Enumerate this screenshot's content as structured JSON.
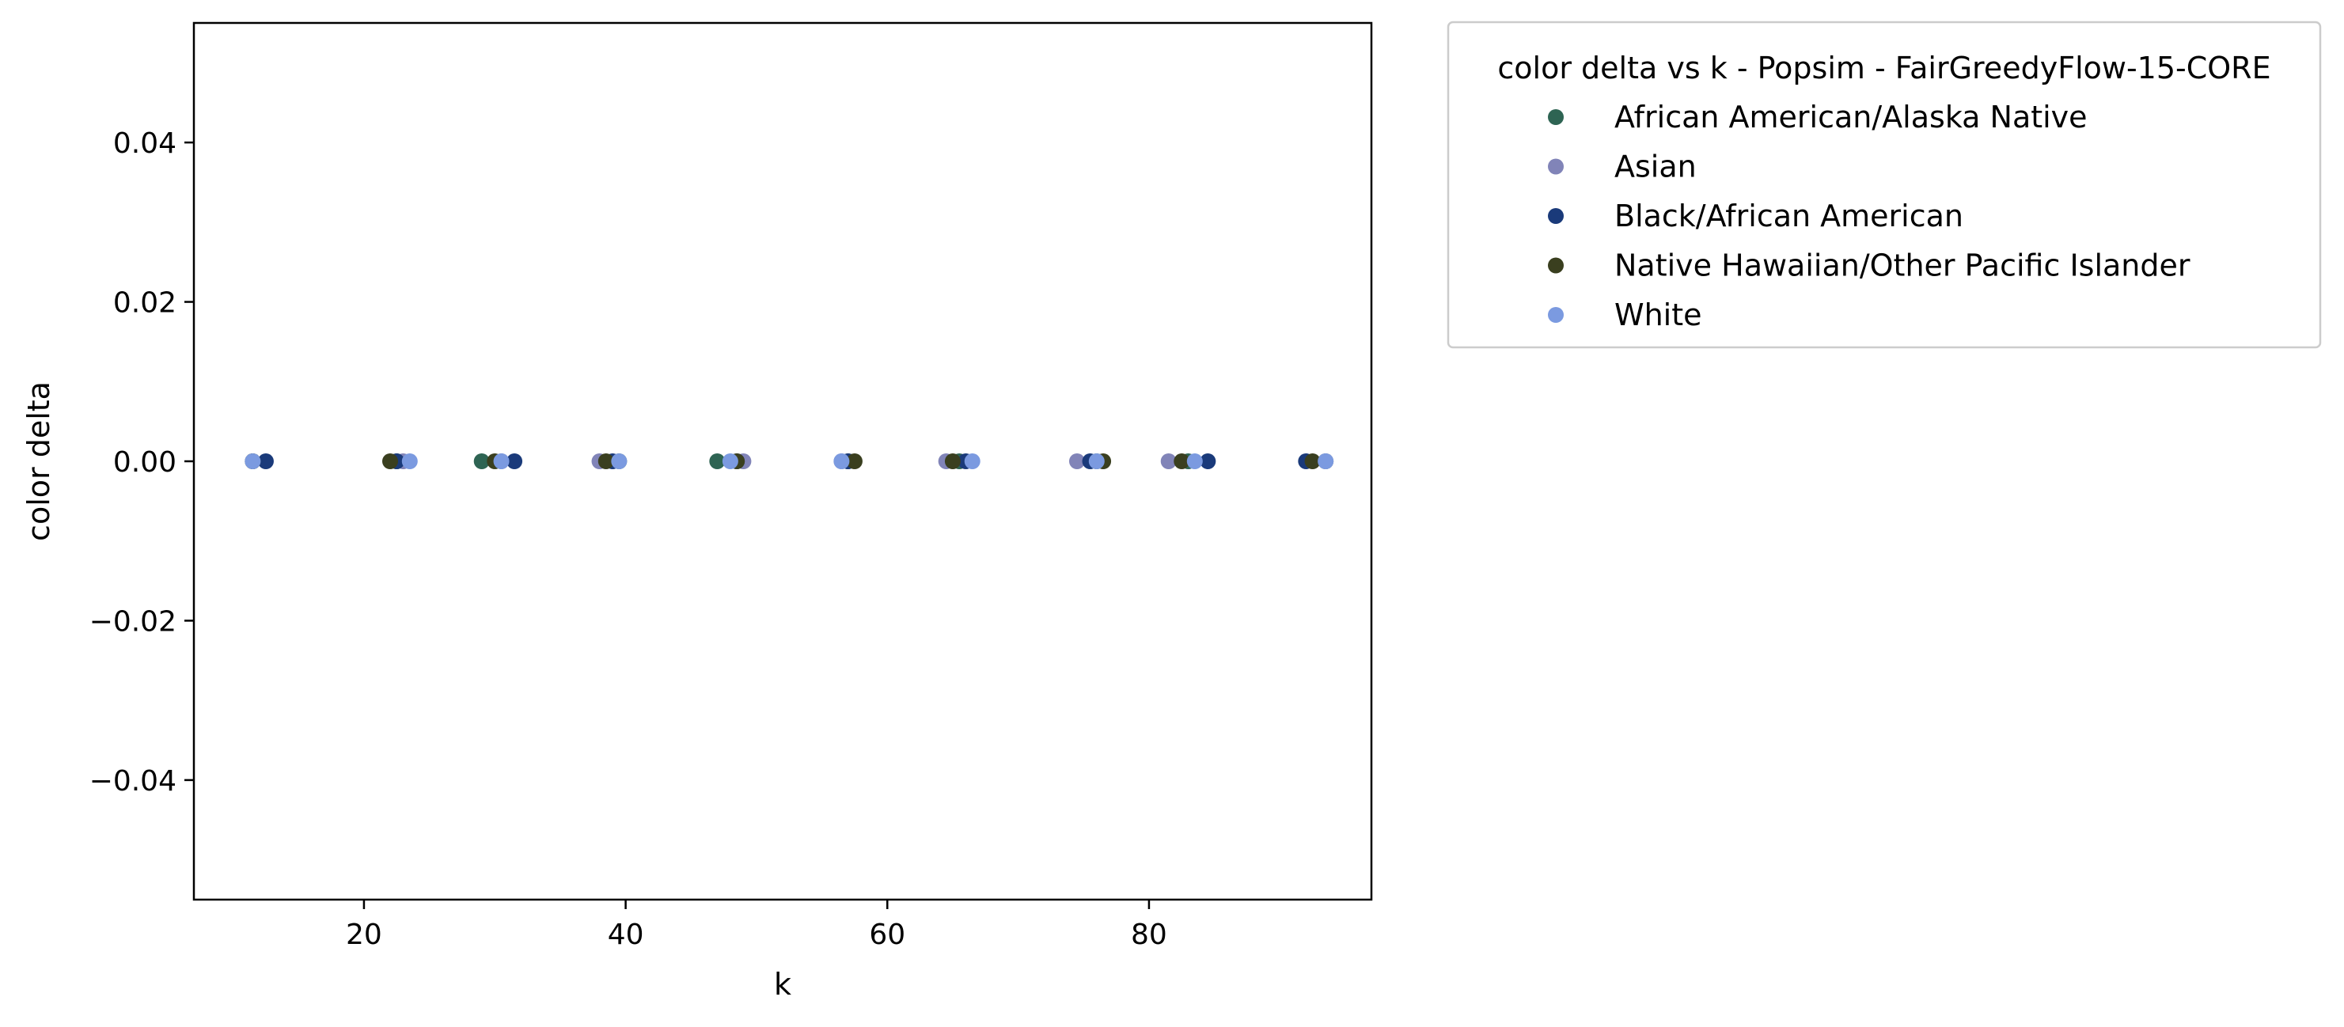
{
  "chart_data": {
    "type": "scatter",
    "xlabel": "k",
    "ylabel": "color delta",
    "xlim": [
      7,
      97
    ],
    "ylim": [
      -0.055,
      0.055
    ],
    "x_ticks": [
      20,
      40,
      60,
      80
    ],
    "x_tick_labels": [
      "20",
      "40",
      "60",
      "80"
    ],
    "y_ticks": [
      0.04,
      0.02,
      0.0,
      -0.02,
      -0.04
    ],
    "y_tick_labels": [
      "0.04",
      "0.02",
      "0.00",
      "−0.02",
      "−0.04"
    ],
    "grid": false,
    "legend": {
      "title": "color delta vs k - Popsim - FairGreedyFlow-15-CORE",
      "placement": "outside-upper-right"
    },
    "series": [
      {
        "name": "African American/Alaska Native",
        "color": "#2e6453",
        "x": [
          11.5,
          22.5,
          29,
          39.5,
          47,
          57,
          65.5,
          76,
          83,
          93.5
        ],
        "y": [
          0,
          0,
          0,
          0,
          0,
          0,
          0,
          0,
          0,
          0
        ]
      },
      {
        "name": "Asian",
        "color": "#8184b8",
        "x": [
          11.5,
          23,
          30.5,
          38,
          49,
          56.5,
          64.5,
          74.5,
          81.5,
          93.5
        ],
        "y": [
          0,
          0,
          0,
          0,
          0,
          0,
          0,
          0,
          0,
          0
        ]
      },
      {
        "name": "Black/African American",
        "color": "#1a3a7a",
        "x": [
          12.5,
          22.5,
          31.5,
          39,
          48.5,
          57,
          66,
          75.5,
          84.5,
          92
        ],
        "y": [
          0,
          0,
          0,
          0,
          0,
          0,
          0,
          0,
          0,
          0
        ]
      },
      {
        "name": "Native Hawaiian/Other Pacific Islander",
        "color": "#3a3f1f",
        "x": [
          11.5,
          22,
          30,
          38.5,
          48.5,
          57.5,
          65,
          76.5,
          82.5,
          92.5
        ],
        "y": [
          0,
          0,
          0,
          0,
          0,
          0,
          0,
          0,
          0,
          0
        ]
      },
      {
        "name": "White",
        "color": "#7b9ae0",
        "x": [
          11.5,
          23.5,
          30.5,
          39.5,
          48,
          56.5,
          66.5,
          76,
          83.5,
          93.5
        ],
        "y": [
          0,
          0,
          0,
          0,
          0,
          0,
          0,
          0,
          0,
          0
        ]
      }
    ]
  }
}
